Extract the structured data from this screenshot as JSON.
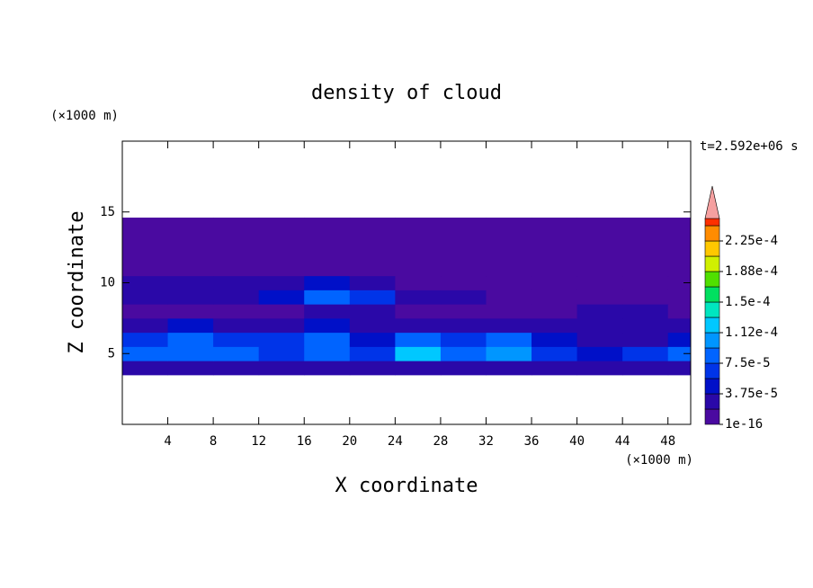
{
  "chart_data": {
    "type": "contour",
    "title": "density of cloud",
    "x_label": "X coordinate",
    "y_label": "Z coordinate",
    "x_unit": "(×1000 m)",
    "y_unit": "(×1000 m)",
    "time_label": "t=2.592e+06 s",
    "xlim": [
      0,
      50
    ],
    "ylim": [
      0,
      20
    ],
    "xticks": [
      4,
      8,
      12,
      16,
      20,
      24,
      28,
      32,
      36,
      40,
      44,
      48
    ],
    "yticks": [
      5,
      10,
      15
    ],
    "x_edges": [
      0,
      4,
      8,
      12,
      16,
      20,
      24,
      28,
      32,
      36,
      40,
      44,
      48,
      50
    ],
    "z_edges": [
      3.5,
      4.5,
      5.5,
      6.5,
      7.5,
      8.5,
      9.5,
      10.5,
      12,
      14.6
    ],
    "values": [
      [
        3e-05,
        2.5e-05,
        2.5e-05,
        2e-05,
        3e-05,
        2e-05,
        2.5e-05,
        2e-05,
        2.5e-05,
        2e-05,
        2e-05,
        2.5e-05,
        3e-05
      ],
      [
        9e-05,
        8e-05,
        8e-05,
        7e-05,
        9e-05,
        6e-05,
        0.00012,
        8e-05,
        0.00011,
        7e-05,
        5e-05,
        6e-05,
        8e-05
      ],
      [
        7e-05,
        9e-05,
        6e-05,
        6e-05,
        8e-05,
        5e-05,
        8e-05,
        6e-05,
        8e-05,
        4e-05,
        3e-05,
        3e-05,
        4e-05
      ],
      [
        3e-05,
        4e-05,
        3e-05,
        2e-05,
        4e-05,
        3e-05,
        3e-05,
        2e-05,
        2e-05,
        2e-05,
        2e-05,
        2e-05,
        2e-05
      ],
      [
        1e-05,
        1e-05,
        1e-05,
        1e-05,
        2e-05,
        2e-05,
        1e-05,
        1e-05,
        1e-05,
        1e-05,
        2e-05,
        2e-05,
        1e-05
      ],
      [
        2e-05,
        2e-05,
        2e-05,
        4e-05,
        8e-05,
        6e-05,
        2e-05,
        2e-05,
        1e-05,
        1e-05,
        1e-05,
        1e-05,
        1e-05
      ],
      [
        2e-05,
        2e-05,
        2e-05,
        3e-05,
        4e-05,
        3e-05,
        1e-05,
        1e-05,
        1e-05,
        1e-05,
        1e-05,
        1e-05,
        1e-05
      ],
      [
        5e-06,
        5e-06,
        5e-06,
        5e-06,
        5e-06,
        5e-06,
        5e-06,
        5e-06,
        5e-06,
        5e-06,
        5e-06,
        5e-06,
        5e-06
      ],
      [
        1e-06,
        1e-06,
        1e-06,
        1e-06,
        1e-06,
        1e-06,
        1e-06,
        1e-06,
        1e-06,
        1e-06,
        1e-06,
        1e-06,
        1e-06
      ]
    ],
    "levels": [
      {
        "value": 1e-16,
        "label": "1e-16"
      },
      1.875e-05,
      {
        "value": 3.75e-05,
        "label": "3.75e-5"
      },
      5.625e-05,
      {
        "value": 7.5e-05,
        "label": "7.5e-5"
      },
      9.375e-05,
      {
        "value": 0.0001125,
        "label": "1.12e-4"
      },
      0.00013125,
      {
        "value": 0.00015,
        "label": "1.5e-4"
      },
      0.00016875,
      {
        "value": 0.0001875,
        "label": "1.88e-4"
      },
      0.00020625,
      {
        "value": 0.000225,
        "label": "2.25e-4"
      },
      0.00024375
    ],
    "level_colors": [
      "#4a0aa0",
      "#2a08a8",
      "#0010c8",
      "#0034e8",
      "#0064ff",
      "#0096ff",
      "#00c8ff",
      "#00e6c0",
      "#00e060",
      "#50e000",
      "#d0f000",
      "#ffc800",
      "#ff8c00",
      "#ff3000"
    ],
    "extend_color": "#f5a0a0"
  }
}
